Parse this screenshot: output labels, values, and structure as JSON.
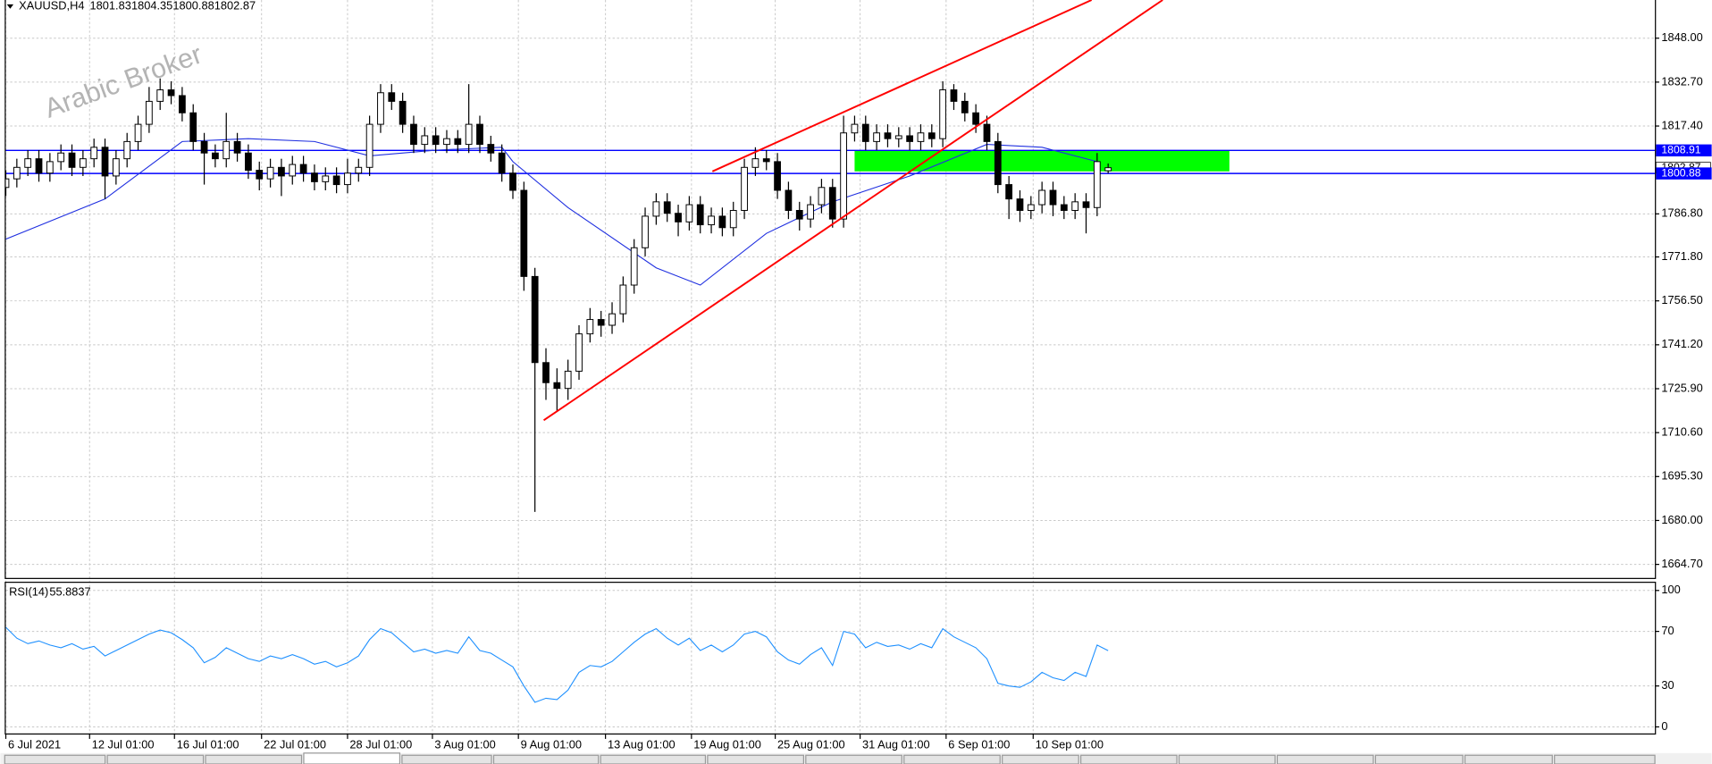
{
  "chart_data": [
    {
      "type": "candlestick",
      "symbol": "XAUUSD,H4",
      "watermark": "Arabic Broker",
      "up_color": "#ffffff",
      "down_color": "#000000",
      "open": [
        1796,
        1799,
        1803,
        1806,
        1801,
        1805,
        1808,
        1803,
        1806,
        1810,
        1800,
        1806,
        1812,
        1818,
        1826,
        1830,
        1828,
        1822,
        1812,
        1808,
        1806,
        1812,
        1808,
        1802,
        1799,
        1803,
        1800,
        1804,
        1801,
        1798,
        1800,
        1797,
        1801,
        1803,
        1818,
        1829,
        1826,
        1818,
        1811,
        1814,
        1811,
        1813,
        1811,
        1818,
        1811,
        1808,
        1801,
        1795,
        1765,
        1735,
        1728,
        1726,
        1732,
        1745,
        1750,
        1748,
        1752,
        1762,
        1775,
        1786,
        1791,
        1787,
        1784,
        1790,
        1783,
        1786,
        1782,
        1788,
        1803,
        1806,
        1805,
        1795,
        1788,
        1785,
        1790,
        1796,
        1785,
        1815,
        1818,
        1812,
        1815,
        1813,
        1814,
        1812,
        1815,
        1813,
        1830,
        1826,
        1822,
        1818,
        1812,
        1797,
        1792,
        1788,
        1790,
        1795,
        1790,
        1788,
        1791,
        1789,
        1801.83
      ],
      "high": [
        1802,
        1806,
        1809,
        1809,
        1808,
        1811,
        1811,
        1809,
        1813,
        1813,
        1809,
        1815,
        1821,
        1831,
        1834,
        1833,
        1831,
        1825,
        1815,
        1811,
        1822,
        1815,
        1811,
        1805,
        1806,
        1806,
        1807,
        1807,
        1804,
        1803,
        1803,
        1806,
        1806,
        1821,
        1832,
        1832,
        1829,
        1821,
        1817,
        1817,
        1816,
        1816,
        1832,
        1821,
        1814,
        1811,
        1804,
        1798,
        1768,
        1740,
        1733,
        1736,
        1748,
        1754,
        1753,
        1756,
        1765,
        1778,
        1789,
        1794,
        1794,
        1790,
        1793,
        1793,
        1789,
        1789,
        1791,
        1806,
        1810,
        1809,
        1808,
        1798,
        1791,
        1793,
        1799,
        1799,
        1821,
        1821,
        1821,
        1818,
        1818,
        1817,
        1817,
        1818,
        1818,
        1833,
        1832,
        1829,
        1825,
        1821,
        1815,
        1800,
        1795,
        1793,
        1798,
        1798,
        1793,
        1794,
        1794,
        1808,
        1804.35
      ],
      "low": [
        1793,
        1796,
        1800,
        1798,
        1798,
        1802,
        1800,
        1800,
        1803,
        1792,
        1797,
        1803,
        1809,
        1815,
        1823,
        1825,
        1819,
        1809,
        1797,
        1803,
        1803,
        1805,
        1799,
        1795,
        1796,
        1793,
        1797,
        1798,
        1795,
        1795,
        1794,
        1794,
        1798,
        1800,
        1815,
        1823,
        1815,
        1808,
        1808,
        1808,
        1808,
        1808,
        1808,
        1808,
        1805,
        1798,
        1792,
        1760,
        1683,
        1722,
        1718,
        1722,
        1729,
        1742,
        1744,
        1745,
        1749,
        1759,
        1772,
        1783,
        1784,
        1779,
        1781,
        1780,
        1780,
        1779,
        1779,
        1785,
        1800,
        1802,
        1792,
        1785,
        1781,
        1782,
        1787,
        1782,
        1782,
        1812,
        1809,
        1809,
        1810,
        1810,
        1809,
        1809,
        1810,
        1810,
        1823,
        1819,
        1815,
        1809,
        1794,
        1785,
        1784,
        1785,
        1787,
        1786,
        1785,
        1785,
        1780,
        1786,
        1800.88
      ],
      "close": [
        1799,
        1803,
        1806,
        1801,
        1805,
        1808,
        1803,
        1806,
        1810,
        1800,
        1806,
        1812,
        1818,
        1826,
        1830,
        1828,
        1822,
        1812,
        1808,
        1806,
        1812,
        1808,
        1802,
        1799,
        1803,
        1800,
        1804,
        1801,
        1798,
        1800,
        1797,
        1801,
        1803,
        1818,
        1829,
        1826,
        1818,
        1811,
        1814,
        1811,
        1813,
        1811,
        1818,
        1811,
        1808,
        1801,
        1795,
        1765,
        1735,
        1728,
        1726,
        1732,
        1745,
        1750,
        1748,
        1752,
        1762,
        1775,
        1786,
        1791,
        1787,
        1784,
        1790,
        1783,
        1786,
        1782,
        1788,
        1803,
        1806,
        1805,
        1795,
        1788,
        1785,
        1790,
        1796,
        1785,
        1815,
        1818,
        1812,
        1815,
        1813,
        1814,
        1812,
        1815,
        1813,
        1830,
        1826,
        1822,
        1818,
        1812,
        1797,
        1792,
        1788,
        1790,
        1795,
        1790,
        1788,
        1791,
        1789,
        1805,
        1802.87
      ],
      "xlim": [
        0,
        149.6
      ],
      "ylim": [
        1659.8,
        1861.3
      ],
      "yticks": [
        {
          "value": 1848.0,
          "label": "1848.00"
        },
        {
          "value": 1832.7,
          "label": "1832.70"
        },
        {
          "value": 1817.4,
          "label": "1817.40"
        },
        {
          "value": 1786.8,
          "label": "1786.80"
        },
        {
          "value": 1771.8,
          "label": "1771.80"
        },
        {
          "value": 1756.5,
          "label": "1756.50"
        },
        {
          "value": 1741.2,
          "label": "1741.20"
        },
        {
          "value": 1725.9,
          "label": "1725.90"
        },
        {
          "value": 1710.6,
          "label": "1710.60"
        },
        {
          "value": 1695.3,
          "label": "1695.30"
        },
        {
          "value": 1680.0,
          "label": "1680.00"
        },
        {
          "value": 1664.7,
          "label": "1664.70"
        }
      ],
      "grid": true,
      "levels": [
        1808.91,
        1800.88
      ],
      "level_color": "#0000ff",
      "ma": {
        "color": "#2030e0",
        "x": [
          0,
          9,
          16,
          22,
          28,
          33,
          39,
          45,
          46,
          51,
          59,
          63,
          69,
          75,
          82,
          89,
          94,
          99
        ],
        "values": [
          1778,
          1792,
          1812,
          1813,
          1812,
          1807,
          1809,
          1810,
          1805,
          1789,
          1768,
          1762,
          1780,
          1791,
          1800,
          1811,
          1810,
          1805
        ]
      },
      "trendlines": [
        {
          "color": "#ff0000",
          "x": [
            64.1,
            98.5
          ],
          "values": [
            1801.6,
            1861.3
          ]
        },
        {
          "color": "#ff0000",
          "x": [
            48.8,
            104.95
          ],
          "values": [
            1714.9,
            1861.3
          ]
        }
      ],
      "zones": [
        {
          "color": "#00ff00",
          "x": [
            77,
            111
          ],
          "values": [
            1801.6,
            1808.9
          ]
        }
      ]
    },
    {
      "type": "line",
      "title": "RSI(14)",
      "color": "#1e90ff",
      "values": [
        73,
        65,
        61,
        63,
        60,
        58,
        61,
        57,
        59,
        52,
        56,
        60,
        64,
        68,
        71,
        69,
        64,
        58,
        47,
        51,
        58,
        54,
        50,
        48,
        52,
        50,
        53,
        50,
        46,
        48,
        44,
        47,
        52,
        64,
        72,
        69,
        62,
        55,
        57,
        54,
        56,
        54,
        66,
        56,
        54,
        49,
        44,
        30,
        18,
        21,
        20,
        27,
        40,
        45,
        44,
        48,
        55,
        62,
        68,
        72,
        65,
        60,
        65,
        56,
        60,
        55,
        60,
        68,
        70,
        66,
        55,
        49,
        46,
        53,
        58,
        45,
        70,
        68,
        58,
        62,
        59,
        60,
        57,
        61,
        58,
        72,
        66,
        62,
        58,
        50,
        32,
        30,
        29,
        33,
        40,
        36,
        34,
        40,
        37,
        60,
        55.8837
      ],
      "xlim": [
        0,
        149.6
      ],
      "ylim": [
        -4.8,
        106.4
      ],
      "yticks": [
        0,
        30,
        70,
        100
      ],
      "grid": true,
      "xticks": [
        {
          "value": 0,
          "label": "6 Jul 2021"
        },
        {
          "value": 7.6,
          "label": "12 Jul 01:00"
        },
        {
          "value": 15.3,
          "label": "16 Jul 01:00"
        },
        {
          "value": 23.2,
          "label": "22 Jul 01:00"
        },
        {
          "value": 31,
          "label": "28 Jul 01:00"
        },
        {
          "value": 38.7,
          "label": "3 Aug 01:00"
        },
        {
          "value": 46.5,
          "label": "9 Aug 01:00"
        },
        {
          "value": 54.4,
          "label": "13 Aug 01:00"
        },
        {
          "value": 62.2,
          "label": "19 Aug 01:00"
        },
        {
          "value": 69.8,
          "label": "25 Aug 01:00"
        },
        {
          "value": 77.5,
          "label": "31 Aug 01:00"
        },
        {
          "value": 85.3,
          "label": "6 Sep 01:00"
        },
        {
          "value": 93.2,
          "label": "10 Sep 01:00"
        }
      ]
    }
  ]
}
